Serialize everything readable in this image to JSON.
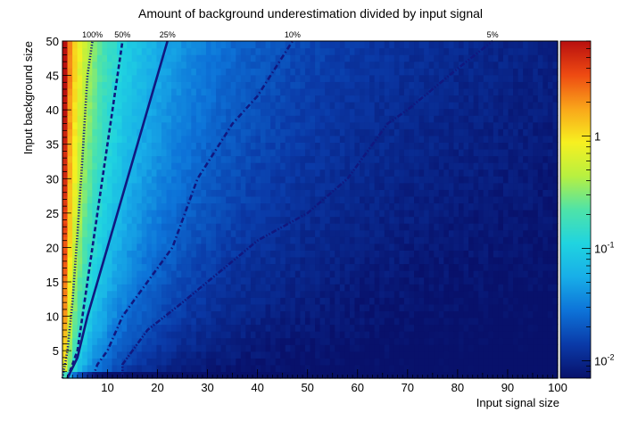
{
  "chart_data": {
    "type": "heatmap",
    "title": "Amount of background underestimation divided by input signal",
    "xlabel": "Input signal size",
    "ylabel": "Input background size",
    "xlim": [
      1,
      100
    ],
    "ylim": [
      1,
      50
    ],
    "x_ticks": [
      10,
      20,
      30,
      40,
      50,
      60,
      70,
      80,
      90,
      100
    ],
    "y_ticks": [
      5,
      10,
      15,
      20,
      25,
      30,
      35,
      40,
      45,
      50
    ],
    "colorbar": {
      "scale": "log",
      "range": [
        0.007,
        7
      ],
      "ticks": [
        {
          "value": 1,
          "label": "1"
        },
        {
          "value": 0.1,
          "label": "10-1"
        },
        {
          "value": 0.01,
          "label": "10-2"
        }
      ],
      "palette": [
        "#08116b",
        "#0a3aa8",
        "#0d73d8",
        "#18aee8",
        "#20d4e0",
        "#4fe3a8",
        "#b8f040",
        "#f7f020",
        "#f9a51a",
        "#ee4a12",
        "#b80f0f"
      ]
    },
    "contours": [
      {
        "label": "100%",
        "style": "dotted",
        "points": [
          [
            1,
            1
          ],
          [
            2,
            5
          ],
          [
            3,
            12
          ],
          [
            4,
            22
          ],
          [
            5,
            33
          ],
          [
            6,
            45
          ],
          [
            7,
            50
          ]
        ]
      },
      {
        "label": "50%",
        "style": "dashed",
        "points": [
          [
            2,
            1
          ],
          [
            4,
            5
          ],
          [
            5,
            10
          ],
          [
            7,
            20
          ],
          [
            9,
            30
          ],
          [
            11,
            40
          ],
          [
            13,
            50
          ]
        ]
      },
      {
        "label": "25%",
        "style": "solid",
        "points": [
          [
            2,
            1
          ],
          [
            4,
            4
          ],
          [
            6,
            10
          ],
          [
            10,
            20
          ],
          [
            14,
            30
          ],
          [
            18,
            40
          ],
          [
            22,
            50
          ]
        ]
      },
      {
        "label": "10%",
        "style": "dash-dot",
        "points": [
          [
            7,
            1
          ],
          [
            8,
            3
          ],
          [
            10,
            5
          ],
          [
            13,
            10
          ],
          [
            18,
            15
          ],
          [
            23,
            20
          ],
          [
            28,
            30
          ],
          [
            35,
            38
          ],
          [
            40,
            42
          ],
          [
            47,
            50
          ]
        ]
      },
      {
        "label": "5%",
        "style": "dash-dot-dot",
        "points": [
          [
            13,
            1
          ],
          [
            13,
            3
          ],
          [
            15,
            5
          ],
          [
            18,
            8
          ],
          [
            25,
            12
          ],
          [
            35,
            18
          ],
          [
            40,
            21
          ],
          [
            50,
            25
          ],
          [
            58,
            30
          ],
          [
            63,
            35
          ],
          [
            66,
            38
          ],
          [
            70,
            40
          ],
          [
            75,
            43
          ],
          [
            80,
            46
          ],
          [
            87,
            50
          ]
        ]
      }
    ]
  }
}
